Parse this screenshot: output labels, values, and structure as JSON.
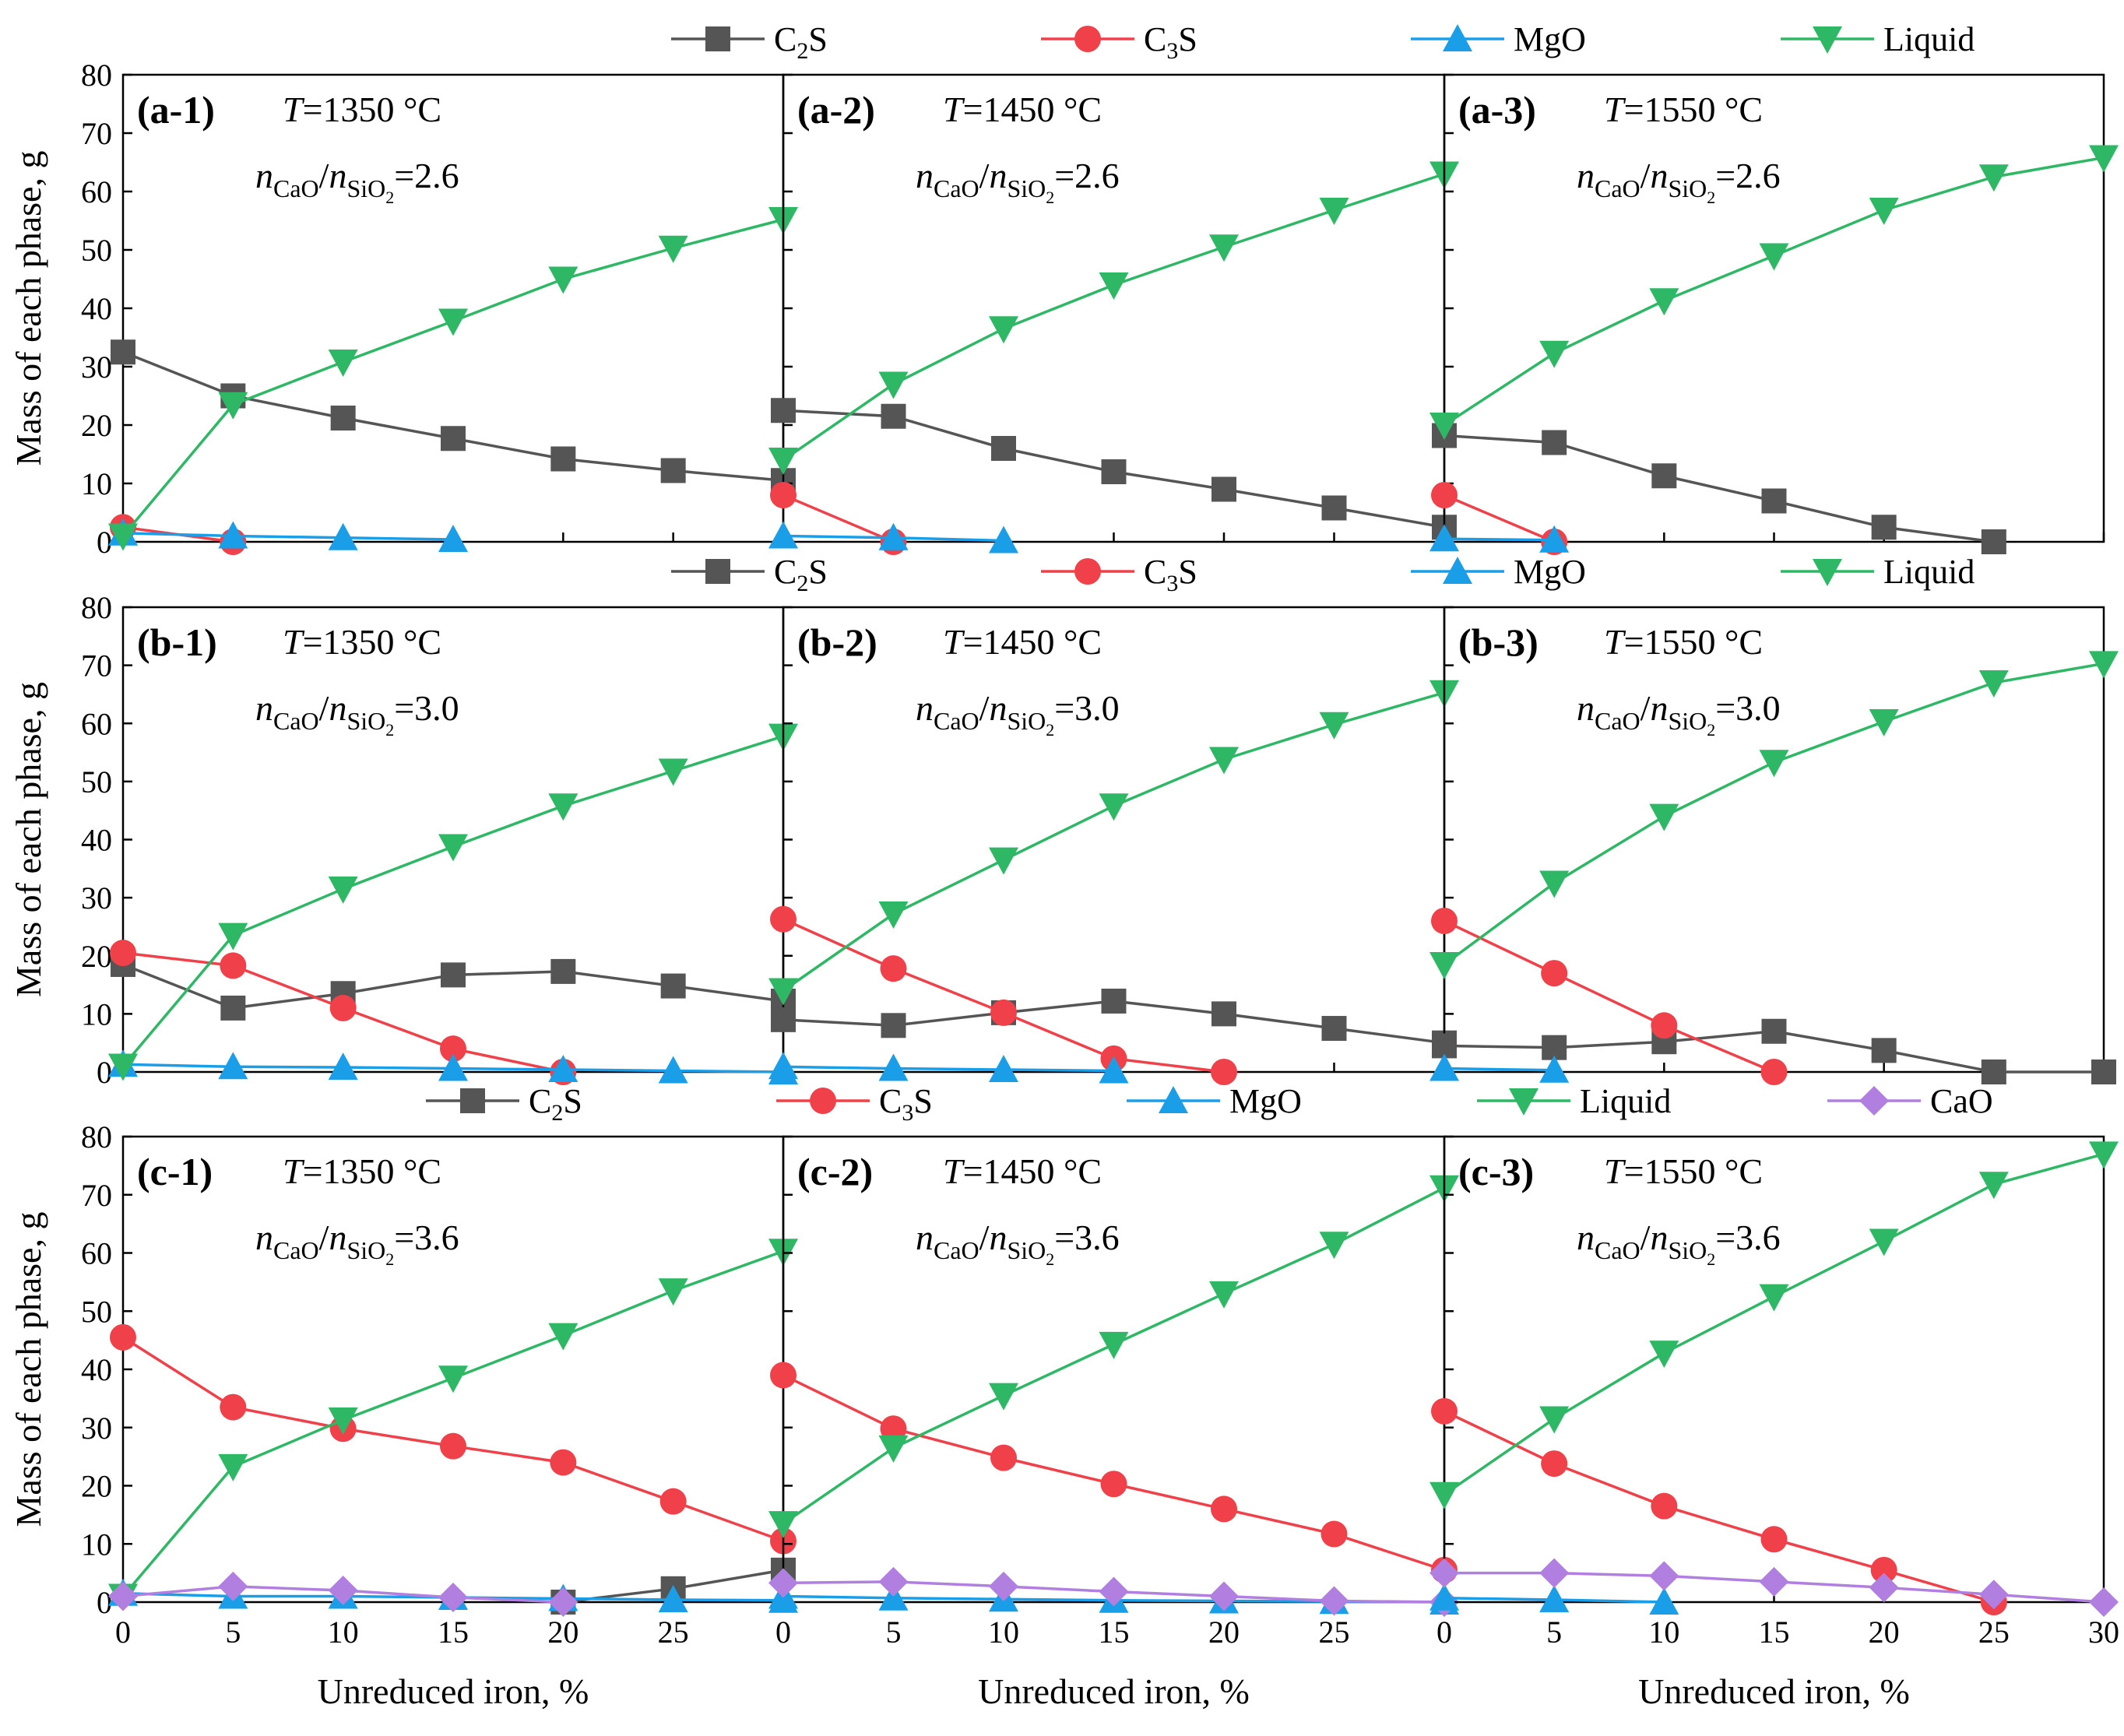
{
  "figure": {
    "xlabel": "Unreduced iron, %",
    "ylabel": "Mass of each phase, g",
    "xticks": [
      0,
      5,
      10,
      15,
      20,
      25,
      30
    ],
    "yticks": [
      0,
      10,
      20,
      30,
      40,
      50,
      60,
      70,
      80
    ]
  },
  "series_styles": {
    "C2S": {
      "label_main": "C",
      "label_sub": "2",
      "label_tail": "S",
      "color": "#555555",
      "marker": "square"
    },
    "C3S": {
      "label_main": "C",
      "label_sub": "3",
      "label_tail": "S",
      "color": "#f0404a",
      "marker": "circle"
    },
    "MgO": {
      "label_main": "MgO",
      "label_sub": "",
      "label_tail": "",
      "color": "#1a9ee8",
      "marker": "triangle-up"
    },
    "Liquid": {
      "label_main": "Liquid",
      "label_sub": "",
      "label_tail": "",
      "color": "#2eb866",
      "marker": "triangle-down"
    },
    "CaO": {
      "label_main": "CaO",
      "label_sub": "",
      "label_tail": "",
      "color": "#b07fe0",
      "marker": "diamond"
    }
  },
  "rows": [
    {
      "id": "a",
      "ratio": "2.6",
      "legend": [
        "C2S",
        "C3S",
        "MgO",
        "Liquid"
      ]
    },
    {
      "id": "b",
      "ratio": "3.0",
      "legend": [
        "C2S",
        "C3S",
        "MgO",
        "Liquid"
      ]
    },
    {
      "id": "c",
      "ratio": "3.6",
      "legend": [
        "C2S",
        "C3S",
        "MgO",
        "Liquid",
        "CaO"
      ]
    }
  ],
  "chart_data": [
    {
      "type": "line",
      "panel": "(a-1)",
      "temperature": "=1350 °C",
      "ratio": "2.6",
      "xlim": [
        0,
        30
      ],
      "ylim": [
        0,
        80
      ],
      "series": [
        {
          "name": "C2S",
          "x": [
            0,
            5,
            10,
            15,
            20,
            25,
            30
          ],
          "values": [
            32.5,
            25,
            21.2,
            17.7,
            14.2,
            12.2,
            10.5
          ]
        },
        {
          "name": "C3S",
          "x": [
            0,
            5
          ],
          "values": [
            2.5,
            0
          ]
        },
        {
          "name": "MgO",
          "x": [
            0,
            5,
            10,
            15
          ],
          "values": [
            1.5,
            1.0,
            0.7,
            0.4
          ]
        },
        {
          "name": "Liquid",
          "x": [
            0,
            5,
            10,
            15,
            20,
            25,
            30
          ],
          "values": [
            1.0,
            23.5,
            30.8,
            37.8,
            45.0,
            50.3,
            55.2
          ]
        }
      ]
    },
    {
      "type": "line",
      "panel": "(a-2)",
      "temperature": "=1450 °C",
      "ratio": "2.6",
      "xlim": [
        0,
        30
      ],
      "ylim": [
        0,
        80
      ],
      "series": [
        {
          "name": "C2S",
          "x": [
            0,
            5,
            10,
            15,
            20,
            25,
            30
          ],
          "values": [
            22.5,
            21.5,
            16.0,
            12.0,
            9.0,
            5.8,
            2.5
          ]
        },
        {
          "name": "C3S",
          "x": [
            0,
            5
          ],
          "values": [
            8.0,
            0
          ]
        },
        {
          "name": "MgO",
          "x": [
            0,
            5,
            10
          ],
          "values": [
            1.0,
            0.7,
            0.2
          ]
        },
        {
          "name": "Liquid",
          "x": [
            0,
            5,
            10,
            15,
            20,
            25,
            30
          ],
          "values": [
            14.0,
            27.0,
            36.5,
            44.0,
            50.5,
            56.8,
            63.0
          ]
        }
      ]
    },
    {
      "type": "line",
      "panel": "(a-3)",
      "temperature": "=1550 °C",
      "ratio": "2.6",
      "xlim": [
        0,
        30
      ],
      "ylim": [
        0,
        80
      ],
      "series": [
        {
          "name": "C2S",
          "x": [
            0,
            5,
            10,
            15,
            20,
            25
          ],
          "values": [
            18.2,
            17.0,
            11.3,
            7.0,
            2.5,
            0
          ]
        },
        {
          "name": "C3S",
          "x": [
            0,
            5
          ],
          "values": [
            8.0,
            0
          ]
        },
        {
          "name": "MgO",
          "x": [
            0,
            5
          ],
          "values": [
            0.5,
            0.3
          ]
        },
        {
          "name": "Liquid",
          "x": [
            0,
            5,
            10,
            15,
            20,
            25,
            30
          ],
          "values": [
            20.0,
            32.3,
            41.3,
            49.0,
            56.8,
            62.5,
            65.8
          ]
        }
      ]
    },
    {
      "type": "line",
      "panel": "(b-1)",
      "temperature": "=1350 °C",
      "ratio": "3.0",
      "xlim": [
        0,
        30
      ],
      "ylim": [
        0,
        80
      ],
      "series": [
        {
          "name": "C2S",
          "x": [
            0,
            5,
            10,
            15,
            20,
            25,
            30
          ],
          "values": [
            18.5,
            11.0,
            13.5,
            16.7,
            17.3,
            14.8,
            12.2
          ]
        },
        {
          "name": "C3S",
          "x": [
            0,
            5,
            10,
            15,
            20
          ],
          "values": [
            20.5,
            18.3,
            11.0,
            4.0,
            0
          ]
        },
        {
          "name": "MgO",
          "x": [
            0,
            5,
            10,
            15,
            20,
            25,
            30
          ],
          "values": [
            1.3,
            0.9,
            0.8,
            0.6,
            0.4,
            0.2,
            0
          ]
        },
        {
          "name": "Liquid",
          "x": [
            0,
            5,
            10,
            15,
            20,
            25,
            30
          ],
          "values": [
            1.0,
            23.5,
            31.5,
            38.8,
            45.8,
            51.8,
            57.8
          ]
        }
      ]
    },
    {
      "type": "line",
      "panel": "(b-2)",
      "temperature": "=1450 °C",
      "ratio": "3.0",
      "xlim": [
        0,
        30
      ],
      "ylim": [
        0,
        80
      ],
      "series": [
        {
          "name": "C2S",
          "x": [
            0,
            5,
            10,
            15,
            20,
            25,
            30
          ],
          "values": [
            9.0,
            8.0,
            10.2,
            12.2,
            10.0,
            7.5,
            5.0
          ]
        },
        {
          "name": "C3S",
          "x": [
            0,
            5,
            10,
            15,
            20
          ],
          "values": [
            26.3,
            17.8,
            10.2,
            2.3,
            0
          ]
        },
        {
          "name": "MgO",
          "x": [
            0,
            5,
            10,
            15
          ],
          "values": [
            0.9,
            0.6,
            0.4,
            0.2
          ]
        },
        {
          "name": "Liquid",
          "x": [
            0,
            5,
            10,
            15,
            20,
            25,
            30
          ],
          "values": [
            14.0,
            27.2,
            36.5,
            45.8,
            53.8,
            59.8,
            65.3
          ]
        }
      ]
    },
    {
      "type": "line",
      "panel": "(b-3)",
      "temperature": "=1550 °C",
      "ratio": "3.0",
      "xlim": [
        0,
        30
      ],
      "ylim": [
        0,
        80
      ],
      "series": [
        {
          "name": "C2S",
          "x": [
            0,
            5,
            10,
            15,
            20,
            25,
            30
          ],
          "values": [
            4.5,
            4.2,
            5.2,
            7.0,
            3.7,
            0,
            0
          ]
        },
        {
          "name": "C3S",
          "x": [
            0,
            5,
            10,
            15
          ],
          "values": [
            26.0,
            17.0,
            8.0,
            0
          ]
        },
        {
          "name": "MgO",
          "x": [
            0,
            5
          ],
          "values": [
            0.6,
            0.3
          ]
        },
        {
          "name": "Liquid",
          "x": [
            0,
            5,
            10,
            15,
            20,
            25,
            30
          ],
          "values": [
            18.5,
            32.5,
            44.0,
            53.3,
            60.3,
            67.0,
            70.3
          ]
        }
      ]
    },
    {
      "type": "line",
      "panel": "(c-1)",
      "temperature": "=1350 °C",
      "ratio": "3.6",
      "xlim": [
        0,
        30
      ],
      "ylim": [
        0,
        80
      ],
      "series": [
        {
          "name": "C2S",
          "x": [
            20,
            25,
            30
          ],
          "values": [
            0,
            2.3,
            5.5
          ]
        },
        {
          "name": "C3S",
          "x": [
            0,
            5,
            10,
            15,
            20,
            25,
            30
          ],
          "values": [
            45.5,
            33.5,
            29.8,
            26.8,
            24.0,
            17.3,
            10.5
          ]
        },
        {
          "name": "MgO",
          "x": [
            0,
            5,
            10,
            15,
            20,
            25,
            30
          ],
          "values": [
            1.5,
            1.0,
            1.0,
            0.8,
            0.6,
            0.4,
            0.3
          ]
        },
        {
          "name": "Liquid",
          "x": [
            0,
            5,
            10,
            15,
            20,
            25,
            30
          ],
          "values": [
            1.0,
            23.3,
            31.3,
            38.5,
            45.8,
            53.5,
            60.3
          ]
        },
        {
          "name": "CaO",
          "x": [
            0,
            5,
            10,
            15,
            20
          ],
          "values": [
            1.0,
            2.7,
            2.0,
            0.8,
            0
          ]
        }
      ]
    },
    {
      "type": "line",
      "panel": "(c-2)",
      "temperature": "=1450 °C",
      "ratio": "3.6",
      "xlim": [
        0,
        30
      ],
      "ylim": [
        0,
        80
      ],
      "series": [
        {
          "name": "C3S",
          "x": [
            0,
            5,
            10,
            15,
            20,
            25,
            30
          ],
          "values": [
            39.0,
            29.8,
            24.8,
            20.3,
            16.0,
            11.7,
            5.5
          ]
        },
        {
          "name": "MgO",
          "x": [
            0,
            5,
            10,
            15,
            20,
            25,
            30
          ],
          "values": [
            1.0,
            0.7,
            0.5,
            0.3,
            0.2,
            0.1,
            0
          ]
        },
        {
          "name": "Liquid",
          "x": [
            0,
            5,
            10,
            15,
            20,
            25,
            30
          ],
          "values": [
            13.5,
            26.5,
            35.5,
            44.3,
            53.0,
            61.5,
            71.2
          ]
        },
        {
          "name": "CaO",
          "x": [
            0,
            5,
            10,
            15,
            20,
            25,
            30
          ],
          "values": [
            3.3,
            3.5,
            2.7,
            1.8,
            1.0,
            0.2,
            0
          ]
        }
      ]
    },
    {
      "type": "line",
      "panel": "(c-3)",
      "temperature": "=1550 °C",
      "ratio": "3.6",
      "xlim": [
        0,
        30
      ],
      "ylim": [
        0,
        80
      ],
      "series": [
        {
          "name": "C3S",
          "x": [
            0,
            5,
            10,
            15,
            20,
            25
          ],
          "values": [
            32.8,
            23.8,
            16.5,
            10.8,
            5.5,
            0
          ]
        },
        {
          "name": "MgO",
          "x": [
            0,
            5,
            10
          ],
          "values": [
            0.7,
            0.4,
            0
          ]
        },
        {
          "name": "Liquid",
          "x": [
            0,
            5,
            10,
            15,
            20,
            25,
            30
          ],
          "values": [
            18.5,
            31.5,
            42.8,
            52.5,
            62.0,
            71.8,
            77.0
          ]
        },
        {
          "name": "CaO",
          "x": [
            0,
            5,
            10,
            15,
            20,
            25,
            30
          ],
          "values": [
            5.0,
            5.0,
            4.5,
            3.5,
            2.5,
            1.3,
            0
          ]
        }
      ]
    }
  ]
}
